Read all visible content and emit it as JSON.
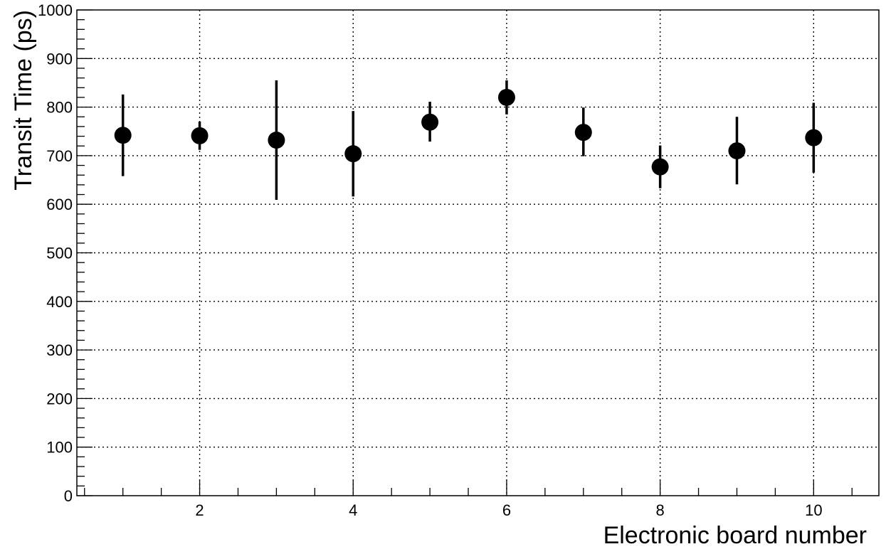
{
  "chart_data": {
    "type": "scatter",
    "title": "",
    "xlabel": "Electronic board number",
    "ylabel": "Transit Time (ps)",
    "xlim": [
      0.4,
      10.85
    ],
    "ylim": [
      0,
      1000
    ],
    "x_ticks": [
      2,
      4,
      6,
      8,
      10
    ],
    "x_tick_labels": [
      "2",
      "4",
      "6",
      "8",
      "10"
    ],
    "y_ticks": [
      0,
      100,
      200,
      300,
      400,
      500,
      600,
      700,
      800,
      900,
      1000
    ],
    "y_tick_labels": [
      "0",
      "100",
      "200",
      "300",
      "400",
      "500",
      "600",
      "700",
      "800",
      "900",
      "1000"
    ],
    "grid": true,
    "marker_color": "#000000",
    "points": [
      {
        "x": 1,
        "y": 742,
        "err_low": 658,
        "err_high": 826
      },
      {
        "x": 2,
        "y": 741,
        "err_low": 712,
        "err_high": 770
      },
      {
        "x": 3,
        "y": 732,
        "err_low": 609,
        "err_high": 855
      },
      {
        "x": 4,
        "y": 704,
        "err_low": 616,
        "err_high": 792
      },
      {
        "x": 5,
        "y": 769,
        "err_low": 729,
        "err_high": 811
      },
      {
        "x": 6,
        "y": 820,
        "err_low": 785,
        "err_high": 855
      },
      {
        "x": 7,
        "y": 748,
        "err_low": 699,
        "err_high": 799
      },
      {
        "x": 8,
        "y": 677,
        "err_low": 633,
        "err_high": 721
      },
      {
        "x": 9,
        "y": 710,
        "err_low": 641,
        "err_high": 780
      },
      {
        "x": 10,
        "y": 737,
        "err_low": 665,
        "err_high": 809
      }
    ]
  }
}
